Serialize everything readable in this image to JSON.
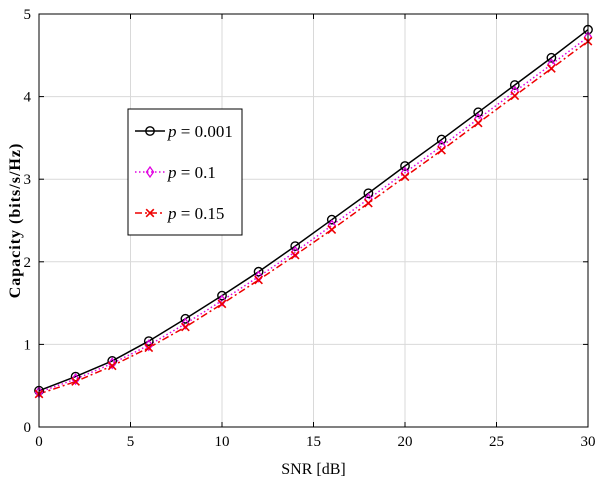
{
  "chart_data": {
    "type": "line",
    "title": "",
    "xlabel": "SNR [dB]",
    "ylabel": "Capacity (bits/s/Hz)",
    "xlim": [
      0,
      30
    ],
    "ylim": [
      0,
      5
    ],
    "xticks": [
      "0",
      "5",
      "10",
      "15",
      "20",
      "25",
      "30"
    ],
    "yticks": [
      "0",
      "1",
      "2",
      "3",
      "4",
      "5"
    ],
    "grid": true,
    "legend_position": "left",
    "x": [
      0,
      2,
      4,
      6,
      8,
      10,
      12,
      14,
      16,
      18,
      20,
      22,
      24,
      26,
      28,
      30
    ],
    "series": [
      {
        "name": "p = 0.001",
        "legend_var": "p",
        "legend_value": "= 0.001",
        "color": "#000000",
        "line_style": "solid",
        "marker": "circle",
        "values": [
          0.44,
          0.61,
          0.8,
          1.04,
          1.31,
          1.59,
          1.88,
          2.19,
          2.51,
          2.83,
          3.16,
          3.48,
          3.81,
          4.14,
          4.47,
          4.81
        ]
      },
      {
        "name": "p = 0.1",
        "legend_var": "p",
        "legend_value": "= 0.1",
        "color": "#e000e0",
        "line_style": "dotted",
        "marker": "diamond",
        "values": [
          0.42,
          0.58,
          0.77,
          0.99,
          1.25,
          1.53,
          1.82,
          2.12,
          2.44,
          2.76,
          3.08,
          3.4,
          3.73,
          4.06,
          4.39,
          4.72
        ]
      },
      {
        "name": "p = 0.15",
        "legend_var": "p",
        "legend_value": "= 0.15",
        "color": "#ee0000",
        "line_style": "dashdot",
        "marker": "x",
        "values": [
          0.4,
          0.55,
          0.74,
          0.96,
          1.21,
          1.49,
          1.78,
          2.08,
          2.39,
          2.71,
          3.03,
          3.35,
          3.68,
          4.01,
          4.34,
          4.67
        ]
      }
    ]
  }
}
